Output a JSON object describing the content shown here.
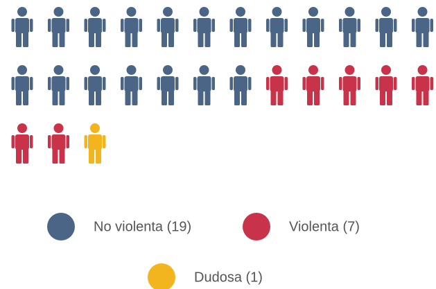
{
  "chart_data": {
    "type": "pictograph",
    "categories": [
      "No violenta (19)",
      "Violenta (7)",
      "Dudosa (1)"
    ],
    "values": [
      19,
      7,
      1
    ],
    "colors": [
      "#4a6586",
      "#c8334a",
      "#f2b51d"
    ]
  }
}
